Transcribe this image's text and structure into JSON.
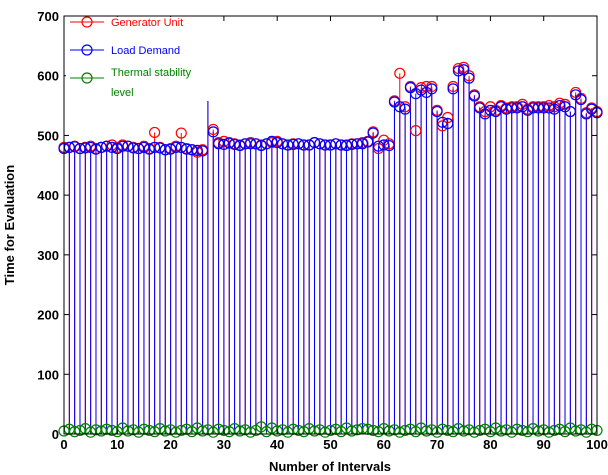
{
  "chart_data": {
    "type": "stem",
    "xlabel": "Number of Intervals",
    "ylabel": "Time for Evaluation",
    "xlim": [
      0,
      100
    ],
    "ylim": [
      0,
      700
    ],
    "xticks": [
      0,
      10,
      20,
      30,
      40,
      50,
      60,
      70,
      80,
      90,
      100
    ],
    "yticks": [
      0,
      100,
      200,
      300,
      400,
      500,
      600,
      700
    ],
    "grid": false,
    "legend_position": "top-left",
    "series": [
      {
        "name": "Generator Unit",
        "color": "#ff0000",
        "marker": "circle",
        "values": [
          480,
          480,
          482,
          478,
          480,
          482,
          478,
          480,
          482,
          484,
          480,
          484,
          482,
          480,
          478,
          482,
          478,
          505,
          480,
          476,
          478,
          482,
          504,
          478,
          476,
          472,
          476,
          606,
          510,
          488,
          490,
          488,
          486,
          484,
          486,
          488,
          486,
          484,
          486,
          488,
          490,
          486,
          484,
          486,
          486,
          484,
          484,
          488,
          486,
          484,
          484,
          486,
          484,
          484,
          486,
          486,
          488,
          490,
          506,
          478,
          492,
          486,
          558,
          604,
          548,
          582,
          508,
          580,
          582,
          582,
          542,
          516,
          530,
          582,
          612,
          614,
          600,
          568,
          548,
          540,
          548,
          542,
          550,
          546,
          548,
          548,
          552,
          544,
          548,
          548,
          548,
          550,
          548,
          554,
          552,
          540,
          572,
          562,
          538,
          546,
          540
        ]
      },
      {
        "name": "Load Demand",
        "color": "#0000ff",
        "marker": "circle",
        "values": [
          478,
          480,
          481,
          478,
          479,
          480,
          477,
          480,
          482,
          480,
          478,
          482,
          482,
          479,
          478,
          480,
          477,
          480,
          479,
          476,
          477,
          480,
          480,
          477,
          476,
          475,
          474,
          604,
          506,
          486,
          485,
          487,
          485,
          483,
          486,
          486,
          486,
          483,
          486,
          490,
          488,
          486,
          484,
          485,
          486,
          484,
          484,
          488,
          486,
          484,
          484,
          486,
          484,
          483,
          485,
          486,
          486,
          489,
          504,
          482,
          484,
          483,
          556,
          548,
          544,
          580,
          570,
          576,
          572,
          578,
          540,
          522,
          520,
          578,
          608,
          610,
          596,
          566,
          546,
          536,
          542,
          540,
          548,
          544,
          546,
          546,
          548,
          542,
          546,
          546,
          546,
          546,
          544,
          550,
          548,
          540,
          568,
          560,
          536,
          544,
          538
        ]
      },
      {
        "name": "Thermal stability level",
        "color": "#008000",
        "marker": "circle",
        "values": [
          5,
          8,
          4,
          6,
          9,
          3,
          7,
          5,
          8,
          6,
          4,
          10,
          5,
          7,
          3,
          8,
          6,
          4,
          9,
          5,
          7,
          3,
          6,
          8,
          4,
          10,
          5,
          7,
          3,
          8,
          6,
          4,
          9,
          5,
          7,
          3,
          6,
          12,
          4,
          10,
          5,
          7,
          3,
          8,
          6,
          4,
          9,
          5,
          7,
          3,
          6,
          8,
          4,
          10,
          5,
          7,
          9,
          8,
          6,
          4,
          9,
          5,
          7,
          3,
          6,
          8,
          4,
          10,
          5,
          7,
          3,
          8,
          6,
          4,
          9,
          5,
          7,
          3,
          6,
          8,
          4,
          10,
          5,
          7,
          3,
          8,
          6,
          4,
          9,
          5,
          7,
          3,
          6,
          8,
          4,
          10,
          5,
          7,
          3,
          8,
          6
        ]
      }
    ]
  }
}
